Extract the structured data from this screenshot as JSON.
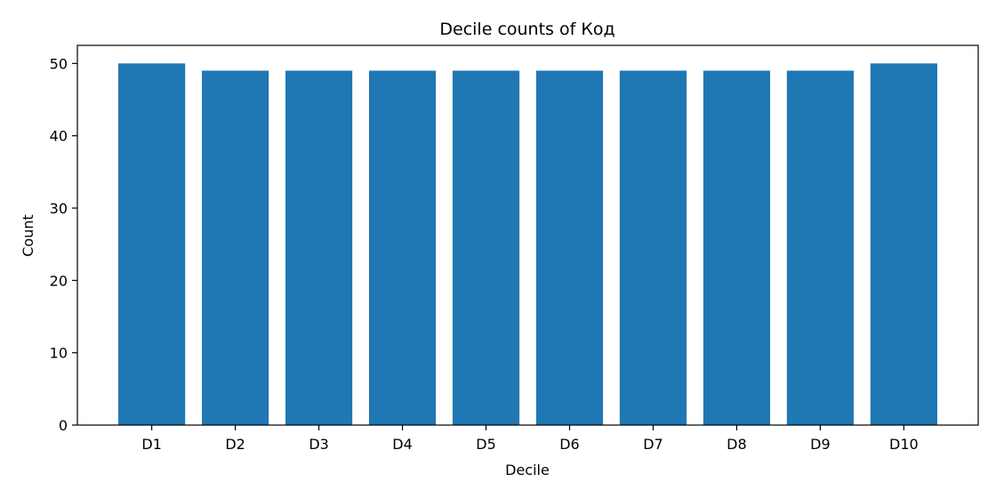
{
  "chart_data": {
    "type": "bar",
    "title": "Decile counts of Код",
    "xlabel": "Decile",
    "ylabel": "Count",
    "categories": [
      "D1",
      "D2",
      "D3",
      "D4",
      "D5",
      "D6",
      "D7",
      "D8",
      "D9",
      "D10"
    ],
    "values": [
      50,
      49,
      49,
      49,
      49,
      49,
      49,
      49,
      49,
      50
    ],
    "ylim": [
      0,
      52.5
    ],
    "yticks": [
      0,
      10,
      20,
      30,
      40,
      50
    ],
    "grid": false,
    "legend": "none",
    "bar_color": "#1f77b4"
  }
}
